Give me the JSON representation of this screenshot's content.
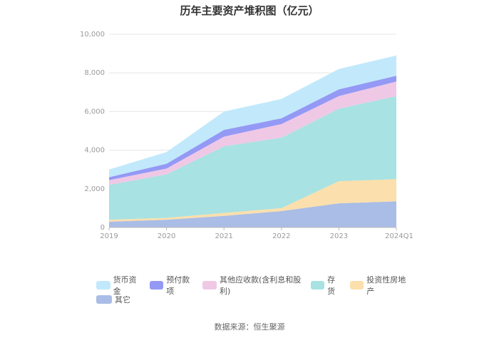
{
  "chart_data": {
    "type": "area",
    "stacked": true,
    "title": "历年主要资产堆积图（亿元）",
    "categories": [
      "2019",
      "2020",
      "2021",
      "2022",
      "2023",
      "2024Q1"
    ],
    "y_ticks": [
      "0",
      "2,000",
      "4,000",
      "6,000",
      "8,000",
      "10,000"
    ],
    "ylim": [
      0,
      10000
    ],
    "grid": true,
    "legend_position": "bottom",
    "series": [
      {
        "name": "其它",
        "color": "#a9bde6",
        "values": [
          300,
          400,
          600,
          850,
          1250,
          1350
        ]
      },
      {
        "name": "投资性房地产",
        "color": "#fbdfac",
        "values": [
          100,
          100,
          150,
          150,
          1150,
          1150
        ]
      },
      {
        "name": "存货",
        "color": "#a8e2e2",
        "values": [
          1800,
          2250,
          3450,
          3650,
          3750,
          4300
        ]
      },
      {
        "name": "其他应收款(含利息和股利)",
        "color": "#efc8e6",
        "values": [
          250,
          300,
          500,
          700,
          650,
          750
        ]
      },
      {
        "name": "预付款项",
        "color": "#9499f5",
        "values": [
          150,
          250,
          350,
          300,
          350,
          300
        ]
      },
      {
        "name": "货币资金",
        "color": "#c1e9fb",
        "values": [
          400,
          600,
          950,
          1000,
          1050,
          1050
        ]
      }
    ]
  },
  "legend_rows": [
    [
      "货币资金",
      "预付款项",
      "其他应收款(含利息和股利)",
      "存货",
      "投资性房地产"
    ],
    [
      "其它"
    ]
  ],
  "legend_colors": {
    "货币资金": "#c1e9fb",
    "预付款项": "#9499f5",
    "其他应收款(含利息和股利)": "#efc8e6",
    "存货": "#a8e2e2",
    "投资性房地产": "#fbdfac",
    "其它": "#a9bde6"
  },
  "source": "数据来源：恒生聚源"
}
